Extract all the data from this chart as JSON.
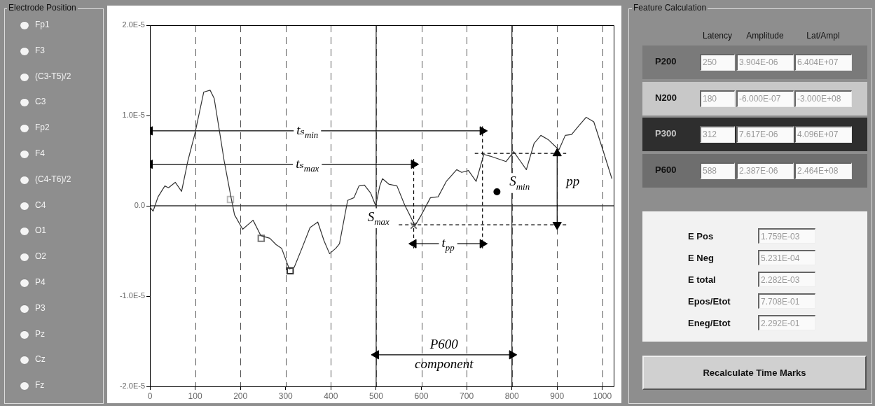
{
  "chart_data": [
    {
      "type": "other",
      "title": "Electrode Position",
      "categories": [
        "Fp1",
        "F3",
        "(C3-T5)/2",
        "C3",
        "Fp2",
        "F4",
        "(C4-T6)/2",
        "C4",
        "O1",
        "O2",
        "P4",
        "P3",
        "Pz",
        "Cz",
        "Fz"
      ]
    },
    {
      "type": "line",
      "xlim": [
        0,
        1025
      ],
      "ylim": [
        -2e-05,
        2e-05
      ],
      "xticks": [
        0,
        100,
        200,
        300,
        400,
        500,
        600,
        700,
        800,
        900,
        1000
      ],
      "yticks": [
        {
          "value": -2e-05,
          "label": "-2.0E-5"
        },
        {
          "value": -1e-05,
          "label": "-1.0E-5"
        },
        {
          "value": 0,
          "label": "0.0"
        },
        {
          "value": 1e-05,
          "label": "1.0E-5"
        },
        {
          "value": 2e-05,
          "label": "2.0E-5"
        }
      ],
      "grid": "x",
      "legend": false,
      "series": [
        {
          "type": "line",
          "color": "#333333",
          "marker": "none",
          "x": [
            0,
            7,
            18,
            33,
            41,
            56,
            70,
            84,
            99,
            119,
            133,
            142,
            153,
            164,
            179,
            187,
            205,
            228,
            245,
            265,
            279,
            291,
            308,
            319,
            336,
            354,
            371,
            385,
            397,
            411,
            419,
            437,
            451,
            462,
            474,
            488,
            499,
            508,
            514,
            528,
            546,
            563,
            586,
            600,
            620,
            637,
            655,
            678,
            689,
            704,
            721,
            738,
            752,
            787,
            804,
            818,
            832,
            849,
            864,
            881,
            904,
            918,
            932,
            947,
            964,
            981,
            1001,
            1021
          ],
          "values": [
            -1.5e-07,
            -6e-07,
            1e-06,
            2.2e-06,
            2e-06,
            2.6e-06,
            1.6e-06,
            5e-06,
            7.9e-06,
            1.26e-05,
            1.28e-05,
            1.19e-05,
            8.5e-06,
            5e-06,
            1e-06,
            -1e-06,
            -2.6e-06,
            -1.6e-06,
            -3.3e-06,
            -3.6e-06,
            -4.3e-06,
            -4.7e-06,
            -7e-06,
            -6.8e-06,
            -4.7e-06,
            -2.4e-06,
            -1.8e-06,
            -3.9e-06,
            -5.3e-06,
            -4.7e-06,
            -4.2e-06,
            6e-07,
            9e-07,
            2.2e-06,
            2.3e-06,
            1.4e-06,
            0,
            2.2e-06,
            3e-06,
            2.4e-06,
            2.2e-06,
            1e-07,
            -2.2e-06,
            -1e-06,
            9e-07,
            1e-06,
            2.7e-06,
            4e-06,
            3.7e-06,
            3.9e-06,
            2.7e-06,
            5.7e-06,
            5.5e-06,
            4.9e-06,
            6e-06,
            5e-06,
            4e-06,
            6.9e-06,
            7.8e-06,
            7.3e-06,
            6.2e-06,
            7.8e-06,
            7.9e-06,
            8.8e-06,
            9.8e-06,
            9.3e-06,
            6.2e-06,
            3e-06
          ]
        },
        {
          "type": "scatter",
          "marker": "square",
          "x": [
            178,
            246,
            310
          ],
          "values": [
            7e-07,
            -3.6e-06,
            -7.2e-06
          ],
          "colors": [
            "#bbbbbb",
            "#777777",
            "#333333"
          ]
        },
        {
          "type": "scatter",
          "marker": "cross",
          "color": "#666666",
          "x": [
            583
          ],
          "values": [
            -2.2e-06
          ]
        },
        {
          "type": "scatter",
          "marker": "circle",
          "color": "#000000",
          "x": [
            767
          ],
          "values": [
            1.55e-06
          ]
        },
        {
          "type": "line",
          "color": "#000000",
          "marker": "none",
          "line_style": "dashed",
          "x": [
            583,
            583
          ],
          "values": [
            5.2e-06,
            -4.7e-06
          ]
        },
        {
          "type": "line",
          "color": "#000000",
          "marker": "none",
          "line_style": "dashed",
          "x": [
            735,
            735
          ],
          "values": [
            8.8e-06,
            -4.7e-06
          ]
        },
        {
          "type": "line",
          "color": "#000000",
          "marker": "none",
          "line_style": "dashed",
          "x": [
            718,
            920
          ],
          "values": [
            5.8e-06,
            5.8e-06
          ]
        },
        {
          "type": "line",
          "color": "#000000",
          "marker": "none",
          "line_style": "dashed",
          "x": [
            550,
            920
          ],
          "values": [
            -2.1e-06,
            -2.1e-06
          ]
        },
        {
          "type": "line",
          "color": "#000000",
          "marker": "triangle",
          "x": [
            0,
            735
          ],
          "values": [
            8.3e-06,
            8.3e-06
          ]
        },
        {
          "type": "line",
          "color": "#000000",
          "marker": "triangle",
          "x": [
            0,
            583
          ],
          "values": [
            4.6e-06,
            4.6e-06
          ]
        },
        {
          "type": "line",
          "color": "#000000",
          "marker": "triangle",
          "x": [
            583,
            735
          ],
          "values": [
            -4.2e-06,
            -4.2e-06
          ]
        },
        {
          "type": "line",
          "color": "#000000",
          "marker": "triangle",
          "x": [
            900,
            900
          ],
          "values": [
            5.8e-06,
            -2.1e-06
          ]
        },
        {
          "type": "line",
          "color": "#000000",
          "marker": "triangle",
          "x": [
            500,
            800
          ],
          "values": [
            -1.65e-05,
            -1.65e-05
          ]
        }
      ],
      "ref_lines": [
        {
          "axis": "x",
          "value": 500,
          "color": "#333333"
        },
        {
          "axis": "x",
          "value": 800,
          "color": "#333333"
        },
        {
          "axis": "y",
          "value": 0,
          "color": "#333333"
        }
      ],
      "annotations": [
        {
          "text": "tₛ$_{min}$",
          "x": 348,
          "y": 8.3e-06
        },
        {
          "text": "tₛ$_{max}$",
          "x": 348,
          "y": 4.6e-06
        },
        {
          "text": "t$_{pp}$",
          "x": 659,
          "y": -4.2e-06
        },
        {
          "text": "S$_{max}$",
          "x": 505,
          "y": -1.3e-06
        },
        {
          "text": "S$_{min}$",
          "x": 817,
          "y": 2.6e-06
        },
        {
          "text": "pp",
          "x": 935,
          "y": 2.6e-06
        },
        {
          "text": "P600 component",
          "x": 650,
          "y": -1.65e-05
        }
      ]
    },
    {
      "type": "other",
      "title": "Feature Calculation",
      "categories": [
        "Latency",
        "Amplitude",
        "Lat/Ampl"
      ],
      "y_categories": [
        "P200",
        "N200",
        "P300",
        "P600"
      ],
      "colors": [
        "#7a7a7a",
        "#c8c8c8",
        "#2e2e2e",
        "#6e6e6e"
      ],
      "cell_labels": [
        [
          "250",
          "3.904E-06",
          "6.404E+07"
        ],
        [
          "180",
          "-6.000E-07",
          "-3.000E+08"
        ],
        [
          "312",
          "7.617E-06",
          "4.096E+07"
        ],
        [
          "588",
          "2.387E-06",
          "2.464E+08"
        ]
      ],
      "annotations": [
        "E Pos",
        "1.759E-03",
        "E Neg",
        "5.231E-04",
        "E total",
        "2.282E-03",
        "Epos/Etot",
        "7.708E-01",
        "Eneg/Etot",
        "2.292E-01",
        "Recalculate Time Marks"
      ]
    }
  ]
}
